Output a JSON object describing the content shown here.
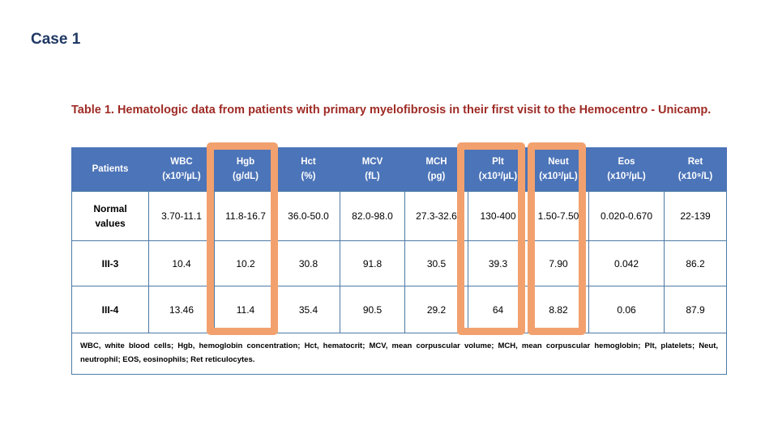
{
  "slide": {
    "title": "Case 1"
  },
  "colors": {
    "background": "#FFFFFF",
    "case_title": "#1F3864",
    "caption": "#9E2B25",
    "header_bg": "#4C74B8",
    "header_text": "#FFFFFF",
    "grid_border": "#4E7AA6",
    "highlight": "#F2A16E",
    "cell_text": "#000000"
  },
  "table": {
    "caption": "Table 1. Hematologic data from patients with primary myelofibrosis in their first visit to the Hemocentro - Unicamp.",
    "columns": [
      {
        "label": "Patients",
        "unit": ""
      },
      {
        "label": "WBC",
        "unit": "(x10³/µL)"
      },
      {
        "label": "Hgb",
        "unit": "(g/dL)"
      },
      {
        "label": "Hct",
        "unit": "(%)"
      },
      {
        "label": "MCV",
        "unit": "(fL)"
      },
      {
        "label": "MCH",
        "unit": "(pg)"
      },
      {
        "label": "Plt",
        "unit": "(x10³/µL)"
      },
      {
        "label": "Neut",
        "unit": "(x10³/µL)"
      },
      {
        "label": "Eos",
        "unit": "(x10³/µL)"
      },
      {
        "label": "Ret",
        "unit": "(x10⁹/L)"
      }
    ],
    "highlighted_columns": [
      "Hgb",
      "Plt",
      "Neut"
    ],
    "rows": [
      {
        "label": "Normal values",
        "values": [
          "3.70-11.1",
          "11.8-16.7",
          "36.0-50.0",
          "82.0-98.0",
          "27.3-32.6",
          "130-400",
          "1.50-7.50",
          "0.020-0.670",
          "22-139"
        ]
      },
      {
        "label": "III-3",
        "values": [
          "10.4",
          "10.2",
          "30.8",
          "91.8",
          "30.5",
          "39.3",
          "7.90",
          "0.042",
          "86.2"
        ]
      },
      {
        "label": "III-4",
        "values": [
          "13.46",
          "11.4",
          "35.4",
          "90.5",
          "29.2",
          "64",
          "8.82",
          "0.06",
          "87.9"
        ]
      }
    ],
    "footnote": "WBC, white blood cells; Hgb, hemoglobin concentration; Hct, hematocrit; MCV, mean corpuscular volume; MCH, mean corpuscular hemoglobin; Plt, platelets; Neut, neutrophil; EOS, eosinophils; Ret reticulocytes."
  }
}
